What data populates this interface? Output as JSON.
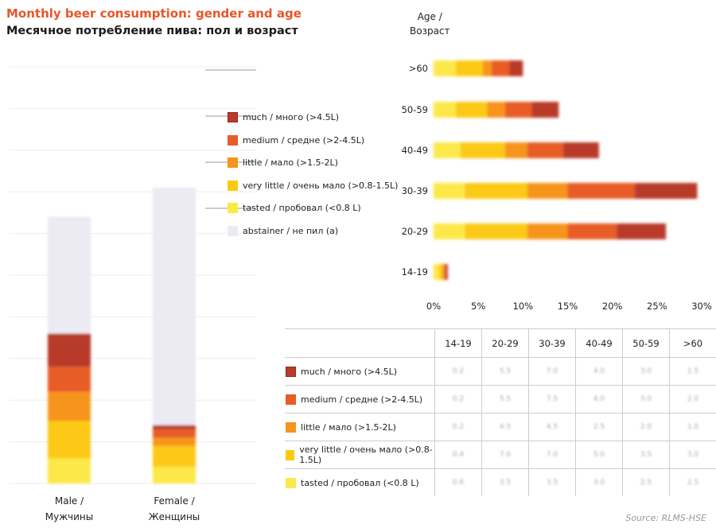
{
  "title": "Monthly beer consumption: gender and age",
  "subtitle": "Месячное потребление пива: пол и возраст",
  "source": "Source: RLMS-HSE",
  "colors": {
    "much": "#b83a2a",
    "medium": "#e85c26",
    "little": "#f7941d",
    "very_little": "#fbc914",
    "tasted": "#fde84a",
    "abstainer": "#eceaf2"
  },
  "legend": [
    {
      "key": "much",
      "label": "much / много (>4.5L)"
    },
    {
      "key": "medium",
      "label": "medium / средне (>2-4.5L)"
    },
    {
      "key": "little",
      "label": "little / мало (>1.5-2L)"
    },
    {
      "key": "very_little",
      "label": "very little / очень мало (>0.8-1.5L)"
    },
    {
      "key": "tasted",
      "label": "tasted / пробовал (<0.8 L)"
    },
    {
      "key": "abstainer",
      "label": "abstainer / не пил (a)"
    }
  ],
  "chart_data": [
    {
      "type": "bar",
      "stacked": true,
      "categories": [
        "Male /\nМужчины",
        "Female /\nЖенщины"
      ],
      "ylim": [
        0,
        100
      ],
      "series": [
        {
          "name": "tasted / пробовал (<0.8 L)",
          "key": "tasted",
          "values": [
            6,
            4
          ]
        },
        {
          "name": "very little / очень мало (>0.8-1.5L)",
          "key": "very_little",
          "values": [
            9,
            5
          ]
        },
        {
          "name": "little / мало (>1.5-2L)",
          "key": "little",
          "values": [
            7,
            2
          ]
        },
        {
          "name": "medium / средне (>2-4.5L)",
          "key": "medium",
          "values": [
            6,
            2
          ]
        },
        {
          "name": "much / много (>4.5L)",
          "key": "much",
          "values": [
            8,
            1
          ]
        },
        {
          "name": "abstainer / не пил (a)",
          "key": "abstainer",
          "values": [
            28,
            57
          ]
        }
      ]
    },
    {
      "type": "bar",
      "orientation": "horizontal",
      "stacked": true,
      "axis_title": "Age /\nВозраст",
      "categories": [
        ">60",
        "50-59",
        "40-49",
        "30-39",
        "20-29",
        "14-19"
      ],
      "xlim": [
        0,
        30
      ],
      "xticks": [
        "0%",
        "5%",
        "10%",
        "15%",
        "20%",
        "25%",
        "30%"
      ],
      "series": [
        {
          "name": "tasted / пробовал (<0.8 L)",
          "key": "tasted",
          "values": [
            2.5,
            2.5,
            3,
            3.5,
            3.5,
            0.6
          ]
        },
        {
          "name": "very little / очень мало (>0.8-1.5L)",
          "key": "very_little",
          "values": [
            3,
            3.5,
            5,
            7,
            7,
            0.4
          ]
        },
        {
          "name": "little / мало (>1.5-2L)",
          "key": "little",
          "values": [
            1,
            2,
            2.5,
            4.5,
            4.5,
            0.2
          ]
        },
        {
          "name": "medium / средне (>2-4.5L)",
          "key": "medium",
          "values": [
            2,
            3,
            4,
            7.5,
            5.5,
            0.2
          ]
        },
        {
          "name": "much / много (>4.5L)",
          "key": "much",
          "values": [
            1.5,
            3,
            4,
            7,
            5.5,
            0.2
          ]
        }
      ]
    }
  ],
  "table": {
    "headers": [
      "14-19",
      "20-29",
      "30-39",
      "40-49",
      "50-59",
      ">60"
    ],
    "rows": [
      {
        "key": "much",
        "label": "much / много (>4.5L)",
        "values": [
          "0.2",
          "5.5",
          "7.0",
          "4.0",
          "3.0",
          "1.5"
        ]
      },
      {
        "key": "medium",
        "label": "medium / средне (>2-4.5L)",
        "values": [
          "0.2",
          "5.5",
          "7.5",
          "4.0",
          "3.0",
          "2.0"
        ]
      },
      {
        "key": "little",
        "label": "little / мало (>1.5-2L)",
        "values": [
          "0.2",
          "4.5",
          "4.5",
          "2.5",
          "2.0",
          "1.0"
        ]
      },
      {
        "key": "very_little",
        "label": "very little / очень мало (>0.8-1.5L)",
        "values": [
          "0.4",
          "7.0",
          "7.0",
          "5.0",
          "3.5",
          "3.0"
        ]
      },
      {
        "key": "tasted",
        "label": "tasted / пробовал (<0.8 L)",
        "values": [
          "0.6",
          "3.5",
          "3.5",
          "3.0",
          "2.5",
          "2.5"
        ]
      }
    ]
  }
}
